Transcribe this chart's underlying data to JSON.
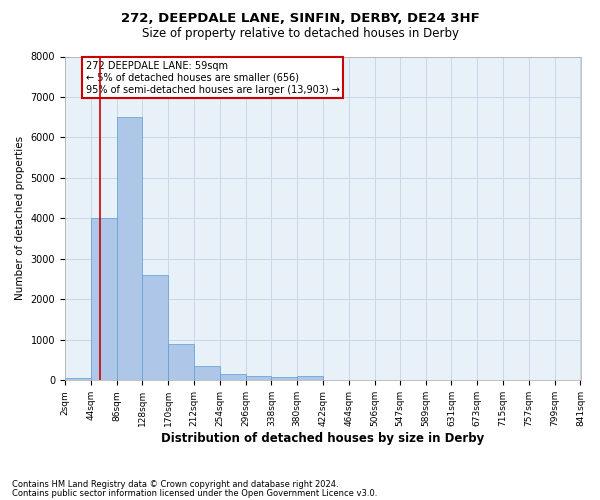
{
  "title1": "272, DEEPDALE LANE, SINFIN, DERBY, DE24 3HF",
  "title2": "Size of property relative to detached houses in Derby",
  "xlabel": "Distribution of detached houses by size in Derby",
  "ylabel": "Number of detached properties",
  "footnote1": "Contains HM Land Registry data © Crown copyright and database right 2024.",
  "footnote2": "Contains public sector information licensed under the Open Government Licence v3.0.",
  "annotation_title": "272 DEEPDALE LANE: 59sqm",
  "annotation_line1": "← 5% of detached houses are smaller (656)",
  "annotation_line2": "95% of semi-detached houses are larger (13,903) →",
  "property_size": 59,
  "bin_edges": [
    2,
    44,
    86,
    128,
    170,
    212,
    254,
    296,
    338,
    380,
    422,
    464,
    506,
    547,
    589,
    631,
    673,
    715,
    757,
    799,
    841
  ],
  "bar_heights": [
    60,
    4000,
    6500,
    2600,
    900,
    350,
    150,
    100,
    80,
    100,
    0,
    0,
    0,
    0,
    0,
    0,
    0,
    0,
    0,
    0
  ],
  "bar_color": "#aec6e8",
  "bar_edge_color": "#5a9fd4",
  "grid_color": "#c8d8e8",
  "background_color": "#e8f0f8",
  "red_line_color": "#cc0000",
  "annotation_box_color": "#cc0000",
  "ylim": [
    0,
    8000
  ],
  "yticks": [
    0,
    1000,
    2000,
    3000,
    4000,
    5000,
    6000,
    7000,
    8000
  ]
}
